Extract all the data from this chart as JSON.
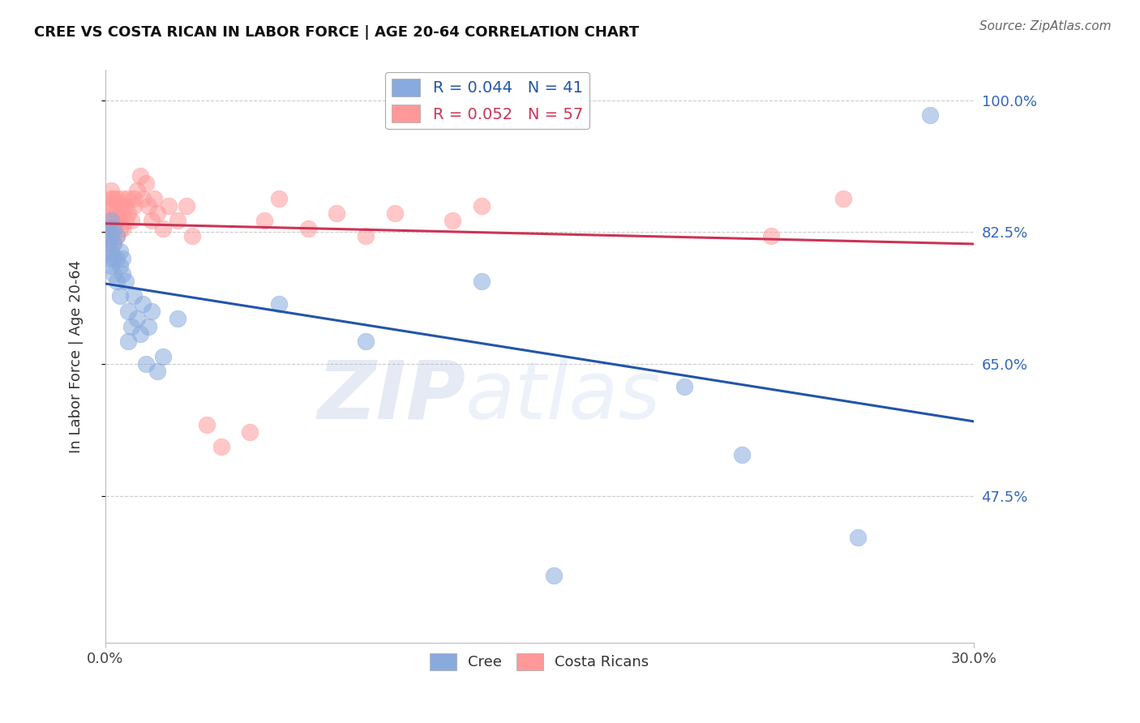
{
  "title": "CREE VS COSTA RICAN IN LABOR FORCE | AGE 20-64 CORRELATION CHART",
  "source": "Source: ZipAtlas.com",
  "ylabel": "In Labor Force | Age 20-64",
  "ytick_labels": [
    "100.0%",
    "82.5%",
    "65.0%",
    "47.5%"
  ],
  "ytick_values": [
    1.0,
    0.825,
    0.65,
    0.475
  ],
  "xmin": 0.0,
  "xmax": 0.3,
  "ymin": 0.28,
  "ymax": 1.04,
  "watermark_zip": "ZIP",
  "watermark_atlas": "atlas",
  "legend_blue_R": "R = 0.044",
  "legend_blue_N": "N = 41",
  "legend_pink_R": "R = 0.052",
  "legend_pink_N": "N = 57",
  "blue_fill": "#88AADD",
  "pink_fill": "#FF9999",
  "blue_edge": "#6688BB",
  "pink_edge": "#EE7788",
  "trend_blue": "#2255AA",
  "trend_pink": "#CC3355",
  "cree_x": [
    0.001,
    0.001,
    0.001,
    0.002,
    0.002,
    0.002,
    0.002,
    0.003,
    0.003,
    0.003,
    0.003,
    0.004,
    0.004,
    0.004,
    0.005,
    0.005,
    0.005,
    0.006,
    0.006,
    0.007,
    0.008,
    0.008,
    0.009,
    0.01,
    0.011,
    0.012,
    0.013,
    0.014,
    0.015,
    0.016,
    0.018,
    0.02,
    0.025,
    0.06,
    0.09,
    0.13,
    0.155,
    0.2,
    0.22,
    0.26,
    0.285
  ],
  "cree_y": [
    0.83,
    0.81,
    0.79,
    0.84,
    0.82,
    0.8,
    0.78,
    0.83,
    0.81,
    0.79,
    0.77,
    0.82,
    0.79,
    0.76,
    0.8,
    0.78,
    0.74,
    0.79,
    0.77,
    0.76,
    0.72,
    0.68,
    0.7,
    0.74,
    0.71,
    0.69,
    0.73,
    0.65,
    0.7,
    0.72,
    0.64,
    0.66,
    0.71,
    0.73,
    0.68,
    0.76,
    0.37,
    0.62,
    0.53,
    0.42,
    0.98
  ],
  "costa_x": [
    0.001,
    0.001,
    0.001,
    0.001,
    0.002,
    0.002,
    0.002,
    0.002,
    0.002,
    0.003,
    0.003,
    0.003,
    0.003,
    0.003,
    0.004,
    0.004,
    0.004,
    0.004,
    0.005,
    0.005,
    0.005,
    0.006,
    0.006,
    0.006,
    0.007,
    0.007,
    0.008,
    0.008,
    0.009,
    0.01,
    0.01,
    0.011,
    0.012,
    0.013,
    0.014,
    0.015,
    0.016,
    0.017,
    0.018,
    0.02,
    0.022,
    0.025,
    0.028,
    0.03,
    0.035,
    0.04,
    0.05,
    0.055,
    0.06,
    0.07,
    0.08,
    0.09,
    0.1,
    0.12,
    0.13,
    0.23,
    0.255
  ],
  "costa_y": [
    0.84,
    0.83,
    0.82,
    0.8,
    0.88,
    0.87,
    0.86,
    0.84,
    0.82,
    0.87,
    0.86,
    0.85,
    0.83,
    0.81,
    0.87,
    0.85,
    0.84,
    0.82,
    0.86,
    0.84,
    0.83,
    0.87,
    0.85,
    0.83,
    0.86,
    0.84,
    0.87,
    0.85,
    0.84,
    0.87,
    0.86,
    0.88,
    0.9,
    0.87,
    0.89,
    0.86,
    0.84,
    0.87,
    0.85,
    0.83,
    0.86,
    0.84,
    0.86,
    0.82,
    0.57,
    0.54,
    0.56,
    0.84,
    0.87,
    0.83,
    0.85,
    0.82,
    0.85,
    0.84,
    0.86,
    0.82,
    0.87
  ]
}
